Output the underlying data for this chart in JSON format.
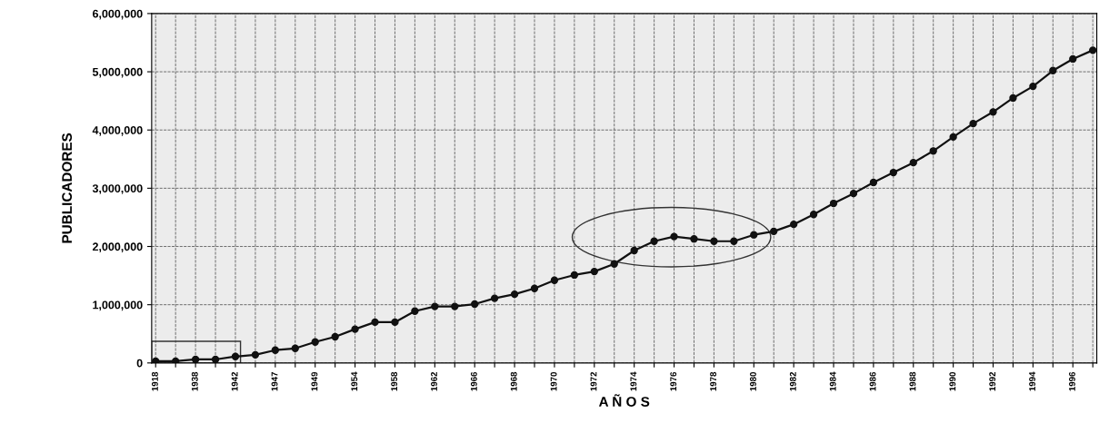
{
  "chart_data": {
    "type": "line",
    "xlabel": "A Ñ O S",
    "ylabel": "PUBLICADORES",
    "categories": [
      "1918",
      null,
      "1938",
      null,
      "1942",
      null,
      "1947",
      null,
      "1949",
      null,
      "1954",
      null,
      "1958",
      null,
      "1962",
      null,
      "1966",
      null,
      "1968",
      null,
      "1970",
      null,
      "1972",
      null,
      "1974",
      null,
      "1976",
      null,
      "1978",
      null,
      "1980",
      null,
      "1982",
      null,
      "1984",
      null,
      "1986",
      null,
      "1988",
      null,
      "1990",
      null,
      "1992",
      null,
      "1994",
      null,
      "1996",
      null
    ],
    "series": [
      {
        "color": "#111111",
        "values": [
          30000,
          30000,
          60000,
          60000,
          110000,
          140000,
          220000,
          250000,
          360000,
          450000,
          580000,
          700000,
          700000,
          890000,
          970000,
          970000,
          1010000,
          1110000,
          1180000,
          1280000,
          1420000,
          1510000,
          1570000,
          1700000,
          1930000,
          2090000,
          2170000,
          2130000,
          2090000,
          2090000,
          2200000,
          2260000,
          2380000,
          2550000,
          2740000,
          2910000,
          3100000,
          3270000,
          3440000,
          3640000,
          3880000,
          4110000,
          4310000,
          4550000,
          4750000,
          5020000,
          5220000,
          5370000
        ]
      }
    ],
    "ylim": [
      0,
      6000000
    ],
    "yticks": [
      {
        "value": 0,
        "label": "0"
      },
      {
        "value": 1000000,
        "label": "1,000,000"
      },
      {
        "value": 2000000,
        "label": "2,000,000"
      },
      {
        "value": 3000000,
        "label": "3,000,000"
      },
      {
        "value": 4000000,
        "label": "4,000,000"
      },
      {
        "value": 5000000,
        "label": "5,000,000"
      },
      {
        "value": 6000000,
        "label": "6,000,000"
      }
    ],
    "grid": true,
    "marker": "circle",
    "line_style": "solid",
    "legend": false
  }
}
